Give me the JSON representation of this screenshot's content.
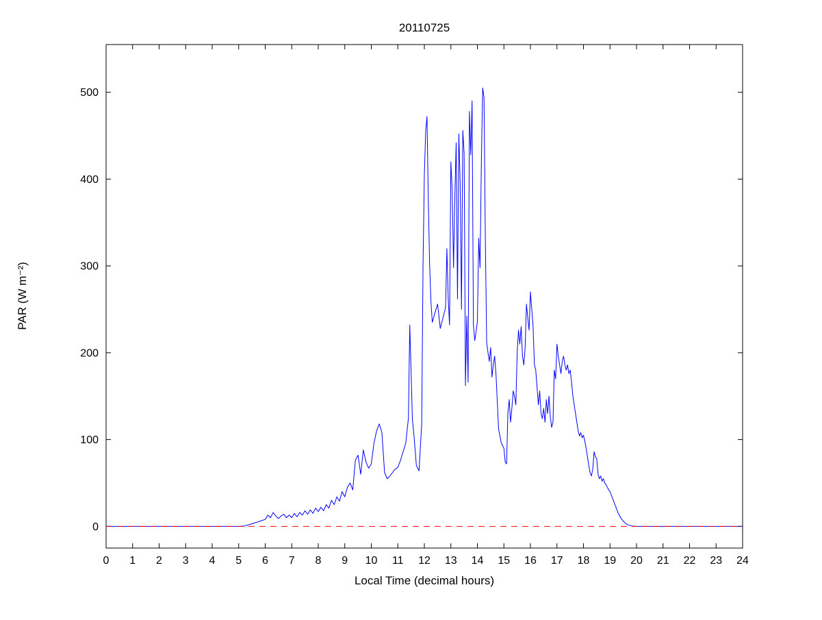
{
  "figure": {
    "title": "20110725",
    "xlabel": "Local Time (decimal hours)",
    "ylabel": "PAR (W m⁻²)"
  },
  "colors": {
    "data_line": "#0000ff",
    "baseline": "#ff0000",
    "axis": "#000000",
    "background": "#ffffff"
  },
  "chart_data": {
    "type": "line",
    "title": "20110725",
    "xlabel": "Local Time (decimal hours)",
    "ylabel": "PAR (W m⁻²)",
    "xlim": [
      0,
      24
    ],
    "ylim": [
      -25,
      555
    ],
    "xticks": [
      0,
      1,
      2,
      3,
      4,
      5,
      6,
      7,
      8,
      9,
      10,
      11,
      12,
      13,
      14,
      15,
      16,
      17,
      18,
      19,
      20,
      21,
      22,
      23,
      24
    ],
    "yticks": [
      0,
      100,
      200,
      300,
      400,
      500
    ],
    "grid": false,
    "legend": null,
    "series": [
      {
        "name": "par",
        "label": "PAR",
        "color": "#0000ff",
        "style": "solid",
        "points": [
          [
            0,
            0
          ],
          [
            1,
            0
          ],
          [
            2,
            0
          ],
          [
            3,
            0
          ],
          [
            4,
            0
          ],
          [
            5,
            0
          ],
          [
            5.2,
            0.5
          ],
          [
            5.4,
            2
          ],
          [
            5.6,
            4
          ],
          [
            5.8,
            6
          ],
          [
            6.0,
            8
          ],
          [
            6.1,
            13
          ],
          [
            6.2,
            10
          ],
          [
            6.3,
            16
          ],
          [
            6.4,
            12
          ],
          [
            6.5,
            9
          ],
          [
            6.6,
            12
          ],
          [
            6.7,
            14
          ],
          [
            6.8,
            10
          ],
          [
            6.9,
            13
          ],
          [
            7.0,
            10
          ],
          [
            7.1,
            15
          ],
          [
            7.2,
            11
          ],
          [
            7.3,
            16
          ],
          [
            7.4,
            13
          ],
          [
            7.5,
            18
          ],
          [
            7.6,
            14
          ],
          [
            7.7,
            19
          ],
          [
            7.8,
            15
          ],
          [
            7.9,
            21
          ],
          [
            8.0,
            17
          ],
          [
            8.1,
            22
          ],
          [
            8.2,
            18
          ],
          [
            8.3,
            25
          ],
          [
            8.4,
            21
          ],
          [
            8.5,
            30
          ],
          [
            8.6,
            25
          ],
          [
            8.7,
            34
          ],
          [
            8.8,
            29
          ],
          [
            8.9,
            40
          ],
          [
            9.0,
            34
          ],
          [
            9.1,
            45
          ],
          [
            9.2,
            50
          ],
          [
            9.3,
            42
          ],
          [
            9.4,
            76
          ],
          [
            9.5,
            82
          ],
          [
            9.6,
            60
          ],
          [
            9.7,
            88
          ],
          [
            9.8,
            74
          ],
          [
            9.9,
            67
          ],
          [
            10.0,
            72
          ],
          [
            10.1,
            96
          ],
          [
            10.2,
            110
          ],
          [
            10.3,
            118
          ],
          [
            10.4,
            108
          ],
          [
            10.5,
            62
          ],
          [
            10.6,
            55
          ],
          [
            10.7,
            58
          ],
          [
            10.8,
            62
          ],
          [
            10.9,
            66
          ],
          [
            11.0,
            68
          ],
          [
            11.1,
            76
          ],
          [
            11.2,
            86
          ],
          [
            11.3,
            96
          ],
          [
            11.4,
            125
          ],
          [
            11.45,
            232
          ],
          [
            11.5,
            178
          ],
          [
            11.55,
            122
          ],
          [
            11.6,
            108
          ],
          [
            11.7,
            70
          ],
          [
            11.8,
            64
          ],
          [
            11.9,
            118
          ],
          [
            11.95,
            300
          ],
          [
            12.0,
            405
          ],
          [
            12.05,
            455
          ],
          [
            12.1,
            472
          ],
          [
            12.15,
            375
          ],
          [
            12.2,
            300
          ],
          [
            12.25,
            258
          ],
          [
            12.3,
            235
          ],
          [
            12.4,
            246
          ],
          [
            12.5,
            256
          ],
          [
            12.6,
            228
          ],
          [
            12.7,
            240
          ],
          [
            12.8,
            252
          ],
          [
            12.85,
            320
          ],
          [
            12.9,
            262
          ],
          [
            12.95,
            232
          ],
          [
            13.0,
            420
          ],
          [
            13.05,
            388
          ],
          [
            13.1,
            298
          ],
          [
            13.15,
            380
          ],
          [
            13.2,
            442
          ],
          [
            13.25,
            262
          ],
          [
            13.3,
            452
          ],
          [
            13.35,
            396
          ],
          [
            13.4,
            250
          ],
          [
            13.45,
            456
          ],
          [
            13.5,
            430
          ],
          [
            13.55,
            162
          ],
          [
            13.6,
            242
          ],
          [
            13.65,
            166
          ],
          [
            13.7,
            478
          ],
          [
            13.75,
            428
          ],
          [
            13.8,
            490
          ],
          [
            13.85,
            232
          ],
          [
            13.9,
            214
          ],
          [
            13.95,
            224
          ],
          [
            14.0,
            236
          ],
          [
            14.05,
            332
          ],
          [
            14.1,
            298
          ],
          [
            14.15,
            420
          ],
          [
            14.2,
            505
          ],
          [
            14.25,
            494
          ],
          [
            14.3,
            330
          ],
          [
            14.35,
            212
          ],
          [
            14.4,
            200
          ],
          [
            14.45,
            190
          ],
          [
            14.5,
            206
          ],
          [
            14.55,
            172
          ],
          [
            14.6,
            186
          ],
          [
            14.65,
            196
          ],
          [
            14.7,
            176
          ],
          [
            14.8,
            112
          ],
          [
            14.9,
            96
          ],
          [
            15.0,
            90
          ],
          [
            15.05,
            74
          ],
          [
            15.1,
            72
          ],
          [
            15.15,
            130
          ],
          [
            15.2,
            146
          ],
          [
            15.25,
            120
          ],
          [
            15.3,
            136
          ],
          [
            15.35,
            156
          ],
          [
            15.4,
            150
          ],
          [
            15.45,
            140
          ],
          [
            15.5,
            200
          ],
          [
            15.55,
            226
          ],
          [
            15.6,
            210
          ],
          [
            15.65,
            230
          ],
          [
            15.7,
            196
          ],
          [
            15.75,
            186
          ],
          [
            15.8,
            206
          ],
          [
            15.85,
            256
          ],
          [
            15.9,
            240
          ],
          [
            15.95,
            226
          ],
          [
            16.0,
            270
          ],
          [
            16.05,
            250
          ],
          [
            16.1,
            230
          ],
          [
            16.15,
            186
          ],
          [
            16.2,
            180
          ],
          [
            16.25,
            160
          ],
          [
            16.3,
            140
          ],
          [
            16.35,
            156
          ],
          [
            16.4,
            130
          ],
          [
            16.45,
            124
          ],
          [
            16.5,
            136
          ],
          [
            16.55,
            120
          ],
          [
            16.6,
            146
          ],
          [
            16.65,
            130
          ],
          [
            16.7,
            150
          ],
          [
            16.75,
            126
          ],
          [
            16.8,
            114
          ],
          [
            16.85,
            120
          ],
          [
            16.9,
            180
          ],
          [
            16.95,
            170
          ],
          [
            17.0,
            210
          ],
          [
            17.05,
            196
          ],
          [
            17.1,
            186
          ],
          [
            17.15,
            176
          ],
          [
            17.2,
            190
          ],
          [
            17.25,
            196
          ],
          [
            17.3,
            186
          ],
          [
            17.35,
            180
          ],
          [
            17.4,
            186
          ],
          [
            17.45,
            176
          ],
          [
            17.5,
            180
          ],
          [
            17.55,
            166
          ],
          [
            17.6,
            150
          ],
          [
            17.65,
            140
          ],
          [
            17.7,
            130
          ],
          [
            17.75,
            120
          ],
          [
            17.8,
            110
          ],
          [
            17.85,
            104
          ],
          [
            17.9,
            108
          ],
          [
            17.95,
            102
          ],
          [
            18.0,
            105
          ],
          [
            18.05,
            98
          ],
          [
            18.1,
            90
          ],
          [
            18.15,
            80
          ],
          [
            18.2,
            70
          ],
          [
            18.25,
            62
          ],
          [
            18.3,
            58
          ],
          [
            18.35,
            66
          ],
          [
            18.4,
            86
          ],
          [
            18.45,
            80
          ],
          [
            18.5,
            78
          ],
          [
            18.55,
            60
          ],
          [
            18.6,
            55
          ],
          [
            18.65,
            58
          ],
          [
            18.7,
            52
          ],
          [
            18.75,
            55
          ],
          [
            18.8,
            50
          ],
          [
            18.85,
            48
          ],
          [
            18.9,
            45
          ],
          [
            18.95,
            42
          ],
          [
            19.0,
            40
          ],
          [
            19.1,
            32
          ],
          [
            19.2,
            24
          ],
          [
            19.3,
            16
          ],
          [
            19.4,
            10
          ],
          [
            19.5,
            6
          ],
          [
            19.6,
            3
          ],
          [
            19.7,
            1.5
          ],
          [
            19.8,
            0.6
          ],
          [
            19.9,
            0.2
          ],
          [
            20.0,
            0
          ],
          [
            21,
            0
          ],
          [
            22,
            0
          ],
          [
            23,
            0
          ],
          [
            24,
            0
          ]
        ]
      },
      {
        "name": "zero-baseline",
        "label": "zero baseline",
        "color": "#ff0000",
        "style": "dashed",
        "points": [
          [
            0,
            0
          ],
          [
            24,
            0
          ]
        ]
      }
    ]
  }
}
